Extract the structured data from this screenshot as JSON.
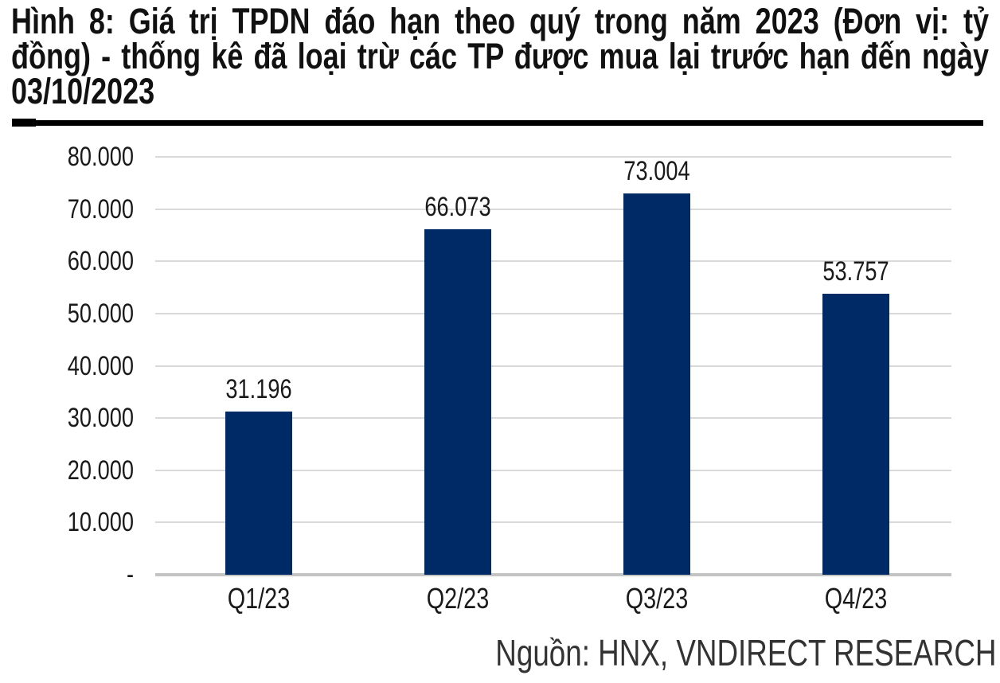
{
  "figure": {
    "title_text": "Hình 8: Giá trị TPDN đáo hạn theo quý trong năm 2023 (Đơn vị: tỷ đồng) - thống kê đã loại trừ các TP được mua lại trước hạn đến ngày 03/10/2023",
    "title_lines": [
      "Hình 8: Giá trị TPDN đáo hạn theo quý trong năm 2023 (Đơn vị: tỷ",
      "đồng) - thống kê đã loại trừ các TP được mua lại trước hạn đến ngày",
      "03/10/2023"
    ],
    "source": "Nguồn: HNX, VNDIRECT RESEARCH"
  },
  "chart_data": {
    "type": "bar",
    "title": "Giá trị TPDN đáo hạn theo quý trong năm 2023",
    "unit": "tỷ đồng",
    "categories": [
      "Q1/23",
      "Q2/23",
      "Q3/23",
      "Q4/23"
    ],
    "values": [
      31196,
      66073,
      73004,
      53757
    ],
    "data_labels": [
      "31.196",
      "66.073",
      "73.004",
      "53.757"
    ],
    "xlabel": "",
    "ylabel": "",
    "ylim": [
      0,
      80000
    ],
    "ytick_step": 10000,
    "ytick_labels": [
      "80.000",
      "70.000",
      "60.000",
      "50.000",
      "40.000",
      "30.000",
      "20.000",
      "10.000",
      "-"
    ],
    "grid": true,
    "legend": false,
    "bar_color": "#002a65",
    "gridline_color": "#d9d9d9",
    "axis_line_color": "#c4c4c4",
    "label_color": "#1a1a1a"
  }
}
